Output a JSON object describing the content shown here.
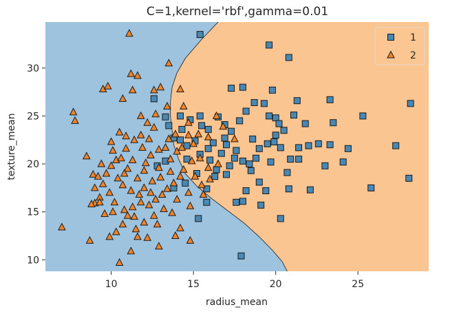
{
  "chart_data": {
    "type": "scatter",
    "title": "C=1,kernel='rbf',gamma=0.01",
    "xlabel": "radius_mean",
    "ylabel": "texture_mean",
    "xlim": [
      6.0,
      29.3
    ],
    "ylim": [
      8.8,
      34.8
    ],
    "x_ticks": [
      10,
      15,
      20,
      25
    ],
    "y_ticks": [
      10,
      15,
      20,
      25,
      30
    ],
    "grid": false,
    "legend_placement": "top-right",
    "region_colors": {
      "1": "#9ec3de",
      "2": "#fbc592"
    },
    "decision_boundary": [
      [
        16.5,
        34.8
      ],
      [
        15.5,
        33.0
      ],
      [
        14.5,
        31.0
      ],
      [
        14.0,
        29.5
      ],
      [
        13.7,
        28.0
      ],
      [
        13.6,
        26.5
      ],
      [
        13.6,
        25.0
      ],
      [
        13.7,
        23.5
      ],
      [
        13.8,
        22.0
      ],
      [
        14.1,
        20.5
      ],
      [
        14.5,
        19.0
      ],
      [
        15.2,
        17.7
      ],
      [
        16.1,
        16.4
      ],
      [
        17.1,
        15.1
      ],
      [
        18.1,
        13.8
      ],
      [
        19.0,
        12.4
      ],
      [
        19.8,
        11.0
      ],
      [
        20.4,
        9.8
      ],
      [
        20.7,
        8.8
      ]
    ],
    "series": [
      {
        "name": "1",
        "marker": "square",
        "color": "#4a88b4",
        "points": [
          [
            15.4,
            33.5
          ],
          [
            19.6,
            32.4
          ],
          [
            20.8,
            31.1
          ],
          [
            17.3,
            27.9
          ],
          [
            18.0,
            28.0
          ],
          [
            19.8,
            27.7
          ],
          [
            21.3,
            26.6
          ],
          [
            23.3,
            26.7
          ],
          [
            25.3,
            25.0
          ],
          [
            28.2,
            26.3
          ],
          [
            23.5,
            24.3
          ],
          [
            27.3,
            21.9
          ],
          [
            28.1,
            18.5
          ],
          [
            25.8,
            17.5
          ],
          [
            24.4,
            21.6
          ],
          [
            24.1,
            20.2
          ],
          [
            23.0,
            19.8
          ],
          [
            23.3,
            22.0
          ],
          [
            22.0,
            21.9
          ],
          [
            21.4,
            20.5
          ],
          [
            22.1,
            17.3
          ],
          [
            20.8,
            17.4
          ],
          [
            19.0,
            18.1
          ],
          [
            18.5,
            19.3
          ],
          [
            18.2,
            17.2
          ],
          [
            18.0,
            16.1
          ],
          [
            19.1,
            15.7
          ],
          [
            20.3,
            14.3
          ],
          [
            17.9,
            10.4
          ],
          [
            18.0,
            20.3
          ],
          [
            17.6,
            21.4
          ],
          [
            17.0,
            22.0
          ],
          [
            16.7,
            21.1
          ],
          [
            16.2,
            22.2
          ],
          [
            15.9,
            21.6
          ],
          [
            15.4,
            21.0
          ],
          [
            15.1,
            22.4
          ],
          [
            14.6,
            21.9
          ],
          [
            14.3,
            23.6
          ],
          [
            14.8,
            24.6
          ],
          [
            15.4,
            25.0
          ],
          [
            15.9,
            23.6
          ],
          [
            16.5,
            24.9
          ],
          [
            16.9,
            24.1
          ],
          [
            17.3,
            23.4
          ],
          [
            17.8,
            24.5
          ],
          [
            18.2,
            25.5
          ],
          [
            18.7,
            26.4
          ],
          [
            19.3,
            26.3
          ],
          [
            19.6,
            25.0
          ],
          [
            20.0,
            24.8
          ],
          [
            20.5,
            23.5
          ],
          [
            21.1,
            25.1
          ],
          [
            20.0,
            23.0
          ],
          [
            19.5,
            22.1
          ],
          [
            19.0,
            21.6
          ],
          [
            18.8,
            20.6
          ],
          [
            19.7,
            20.2
          ],
          [
            20.3,
            21.7
          ],
          [
            20.9,
            20.5
          ],
          [
            21.4,
            21.7
          ],
          [
            22.6,
            22.1
          ],
          [
            16.3,
            18.7
          ],
          [
            17.0,
            18.9
          ],
          [
            15.8,
            17.4
          ],
          [
            15.3,
            14.3
          ],
          [
            16.4,
            19.4
          ],
          [
            17.5,
            20.6
          ],
          [
            18.6,
            22.6
          ],
          [
            19.9,
            22.3
          ],
          [
            20.2,
            24.2
          ],
          [
            15.5,
            24.0
          ],
          [
            14.2,
            25.0
          ],
          [
            13.5,
            24.0
          ],
          [
            12.6,
            26.8
          ],
          [
            13.8,
            22.7
          ],
          [
            13.3,
            20.3
          ],
          [
            14.6,
            20.5
          ],
          [
            16.0,
            20.4
          ],
          [
            17.2,
            19.8
          ],
          [
            18.4,
            20.0
          ],
          [
            21.8,
            24.2
          ],
          [
            15.2,
            19.0
          ],
          [
            14.2,
            22.5
          ],
          [
            13.3,
            24.9
          ],
          [
            17.6,
            16.0
          ],
          [
            19.4,
            17.2
          ],
          [
            15.8,
            16.0
          ],
          [
            16.9,
            22.7
          ],
          [
            20.7,
            19.1
          ],
          [
            12.8,
            19.8
          ],
          [
            14.5,
            18.0
          ],
          [
            13.8,
            17.5
          ]
        ]
      },
      {
        "name": "2",
        "marker": "triangle",
        "color": "#f0842a",
        "points": [
          [
            7.0,
            13.4
          ],
          [
            7.7,
            25.4
          ],
          [
            7.8,
            24.5
          ],
          [
            8.5,
            20.8
          ],
          [
            8.9,
            18.9
          ],
          [
            8.7,
            12.0
          ],
          [
            9.0,
            15.9
          ],
          [
            9.3,
            16.5
          ],
          [
            9.5,
            27.8
          ],
          [
            9.8,
            28.1
          ],
          [
            10.0,
            22.3
          ],
          [
            10.3,
            20.4
          ],
          [
            10.5,
            23.3
          ],
          [
            10.7,
            26.8
          ],
          [
            11.1,
            33.6
          ],
          [
            11.2,
            29.4
          ],
          [
            11.6,
            29.2
          ],
          [
            11.3,
            27.7
          ],
          [
            11.8,
            25.0
          ],
          [
            12.2,
            24.3
          ],
          [
            11.9,
            21.7
          ],
          [
            12.4,
            20.9
          ],
          [
            12.6,
            27.7
          ],
          [
            13.0,
            28.0
          ],
          [
            13.5,
            30.5
          ],
          [
            13.4,
            26.0
          ],
          [
            14.2,
            27.8
          ],
          [
            14.7,
            24.3
          ],
          [
            13.9,
            23.1
          ],
          [
            13.3,
            21.7
          ],
          [
            12.9,
            19.6
          ],
          [
            12.5,
            18.2
          ],
          [
            12.0,
            17.5
          ],
          [
            11.7,
            16.8
          ],
          [
            11.3,
            15.5
          ],
          [
            11.0,
            14.6
          ],
          [
            10.7,
            13.7
          ],
          [
            10.3,
            12.9
          ],
          [
            9.9,
            12.4
          ],
          [
            9.6,
            14.8
          ],
          [
            9.3,
            16.0
          ],
          [
            9.0,
            17.5
          ],
          [
            10.5,
            9.7
          ],
          [
            11.2,
            10.9
          ],
          [
            12.2,
            12.3
          ],
          [
            12.8,
            13.7
          ],
          [
            13.7,
            14.9
          ],
          [
            14.2,
            13.3
          ],
          [
            14.8,
            12.0
          ],
          [
            15.5,
            17.8
          ],
          [
            15.1,
            18.7
          ],
          [
            14.7,
            17.0
          ],
          [
            14.0,
            16.3
          ],
          [
            13.1,
            16.8
          ],
          [
            12.3,
            15.7
          ],
          [
            11.6,
            18.5
          ],
          [
            11.0,
            19.5
          ],
          [
            10.6,
            20.6
          ],
          [
            10.1,
            21.4
          ],
          [
            9.7,
            19.0
          ],
          [
            9.5,
            17.9
          ],
          [
            9.2,
            18.7
          ],
          [
            10.2,
            16.0
          ],
          [
            10.8,
            15.2
          ],
          [
            11.4,
            14.5
          ],
          [
            12.0,
            13.9
          ],
          [
            12.6,
            14.6
          ],
          [
            13.2,
            15.3
          ],
          [
            13.8,
            18.0
          ],
          [
            14.4,
            19.4
          ],
          [
            14.9,
            20.3
          ],
          [
            15.4,
            20.6
          ],
          [
            15.9,
            19.6
          ],
          [
            16.5,
            20.0
          ],
          [
            14.0,
            21.3
          ],
          [
            13.6,
            19.2
          ],
          [
            12.9,
            21.5
          ],
          [
            12.3,
            22.6
          ],
          [
            11.8,
            23.0
          ],
          [
            11.4,
            22.5
          ],
          [
            10.9,
            21.6
          ],
          [
            10.4,
            18.5
          ],
          [
            9.9,
            17.0
          ],
          [
            10.7,
            17.8
          ],
          [
            11.2,
            17.2
          ],
          [
            11.8,
            16.0
          ],
          [
            12.7,
            16.3
          ],
          [
            13.4,
            17.4
          ],
          [
            14.2,
            18.7
          ],
          [
            14.8,
            15.6
          ],
          [
            12.0,
            19.3
          ],
          [
            10.1,
            15.0
          ],
          [
            11.5,
            13.2
          ],
          [
            13.9,
            12.5
          ],
          [
            15.0,
            22.1
          ],
          [
            14.4,
            26.0
          ],
          [
            12.7,
            25.2
          ],
          [
            12.1,
            20.1
          ],
          [
            11.3,
            20.4
          ],
          [
            10.8,
            19.0
          ],
          [
            10.0,
            19.8
          ],
          [
            9.4,
            20.0
          ],
          [
            13.5,
            22.6
          ],
          [
            14.7,
            23.0
          ],
          [
            16.0,
            18.4
          ],
          [
            15.6,
            16.8
          ],
          [
            12.4,
            17.0
          ],
          [
            13.0,
            18.6
          ],
          [
            13.6,
            20.5
          ],
          [
            14.3,
            21.7
          ],
          [
            15.3,
            23.1
          ],
          [
            11.6,
            12.4
          ],
          [
            12.9,
            11.4
          ],
          [
            8.8,
            15.8
          ],
          [
            16.4,
            25.0
          ],
          [
            16.8,
            23.9
          ],
          [
            17.5,
            22.6
          ],
          [
            15.9,
            22.8
          ],
          [
            10.9,
            22.9
          ],
          [
            12.6,
            23.8
          ]
        ]
      }
    ]
  }
}
